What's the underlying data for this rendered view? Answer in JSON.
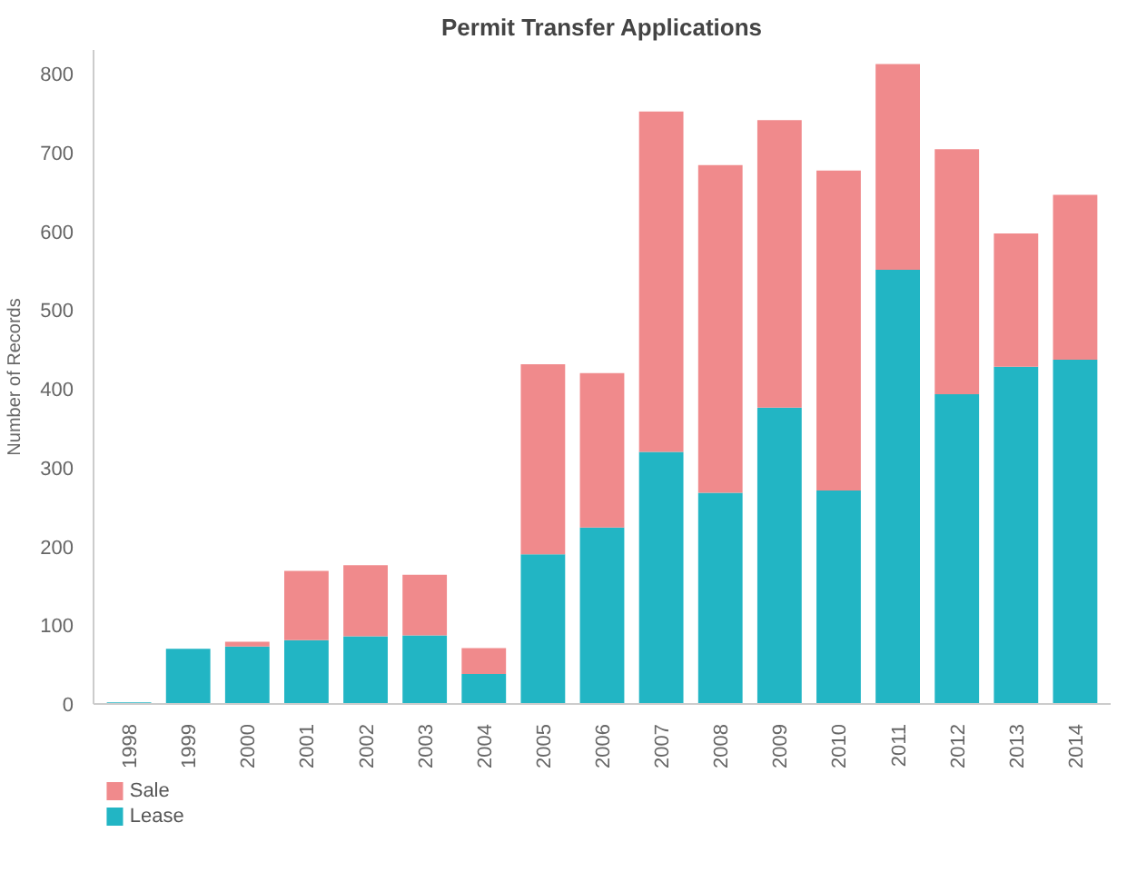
{
  "chart_data": {
    "type": "bar",
    "title": "Permit Transfer Applications",
    "ylabel": "Number of Records",
    "categories": [
      "1998",
      "1999",
      "2000",
      "2001",
      "2002",
      "2003",
      "2004",
      "2005",
      "2006",
      "2007",
      "2008",
      "2009",
      "2010",
      "2011",
      "2012",
      "2013",
      "2014"
    ],
    "stacked": true,
    "series": [
      {
        "name": "Lease",
        "color": "#22b5c4",
        "values": [
          2,
          70,
          73,
          81,
          86,
          87,
          38,
          190,
          224,
          320,
          268,
          376,
          271,
          551,
          393,
          428,
          437
        ]
      },
      {
        "name": "Sale",
        "color": "#f08a8c",
        "values": [
          0,
          0,
          6,
          88,
          90,
          77,
          33,
          241,
          196,
          432,
          416,
          365,
          406,
          261,
          311,
          169,
          209
        ]
      }
    ],
    "ylim": [
      0,
      830
    ],
    "yticks": [
      0,
      100,
      200,
      300,
      400,
      500,
      600,
      700,
      800
    ],
    "grid": false,
    "legend": "bottom left"
  }
}
